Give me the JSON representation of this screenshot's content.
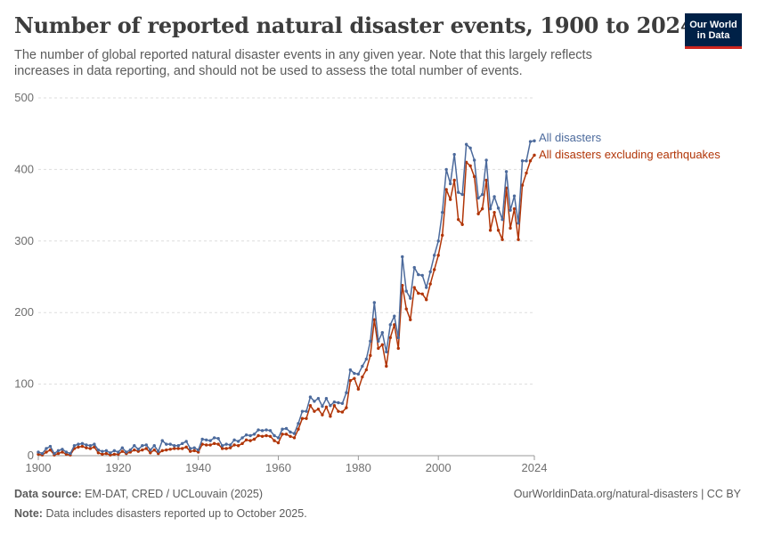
{
  "header": {
    "title": "Number of reported natural disaster events, 1900 to 2024",
    "subtitle": "The number of global reported natural disaster events in any given year. Note that this largely reflects increases in data reporting, and should not be used to assess the total number of events."
  },
  "logo": {
    "line1": "Our World",
    "line2": "in Data"
  },
  "footer": {
    "source_label": "Data source:",
    "source_text": "EM-DAT, CRED / UCLouvain (2025)",
    "url_text": "OurWorldinData.org/natural-disasters | CC BY",
    "note_label": "Note:",
    "note_text": "Data includes disasters reported up to October 2025."
  },
  "colors": {
    "all": "#4c6a9c",
    "excl": "#b13507",
    "grid": "#dddddd",
    "axis": "#999999"
  },
  "chart_data": {
    "type": "line",
    "title": "Number of reported natural disaster events, 1900 to 2024",
    "xlabel": "",
    "ylabel": "",
    "xlim": [
      1900,
      2024
    ],
    "ylim": [
      0,
      500
    ],
    "x_ticks": [
      1900,
      1920,
      1940,
      1960,
      1980,
      2000,
      2024
    ],
    "y_ticks": [
      0,
      100,
      200,
      300,
      400,
      500
    ],
    "grid": true,
    "series": [
      {
        "name": "All disasters",
        "color": "#4c6a9c",
        "x": [
          1900,
          1901,
          1902,
          1903,
          1904,
          1905,
          1906,
          1907,
          1908,
          1909,
          1910,
          1911,
          1912,
          1913,
          1914,
          1915,
          1916,
          1917,
          1918,
          1919,
          1920,
          1921,
          1922,
          1923,
          1924,
          1925,
          1926,
          1927,
          1928,
          1929,
          1930,
          1931,
          1932,
          1933,
          1934,
          1935,
          1936,
          1937,
          1938,
          1939,
          1940,
          1941,
          1942,
          1943,
          1944,
          1945,
          1946,
          1947,
          1948,
          1949,
          1950,
          1951,
          1952,
          1953,
          1954,
          1955,
          1956,
          1957,
          1958,
          1959,
          1960,
          1961,
          1962,
          1963,
          1964,
          1965,
          1966,
          1967,
          1968,
          1969,
          1970,
          1971,
          1972,
          1973,
          1974,
          1975,
          1976,
          1977,
          1978,
          1979,
          1980,
          1981,
          1982,
          1983,
          1984,
          1985,
          1986,
          1987,
          1988,
          1989,
          1990,
          1991,
          1992,
          1993,
          1994,
          1995,
          1996,
          1997,
          1998,
          1999,
          2000,
          2001,
          2002,
          2003,
          2004,
          2005,
          2006,
          2007,
          2008,
          2009,
          2010,
          2011,
          2012,
          2013,
          2014,
          2015,
          2016,
          2017,
          2018,
          2019,
          2020,
          2021,
          2022,
          2023,
          2024
        ],
        "values": [
          5,
          3,
          10,
          13,
          3,
          7,
          9,
          5,
          3,
          14,
          16,
          17,
          15,
          14,
          16,
          8,
          6,
          7,
          4,
          7,
          5,
          11,
          5,
          8,
          14,
          9,
          14,
          15,
          8,
          14,
          6,
          21,
          16,
          16,
          14,
          14,
          17,
          20,
          10,
          11,
          8,
          23,
          22,
          21,
          25,
          24,
          14,
          16,
          15,
          22,
          20,
          25,
          29,
          28,
          30,
          36,
          35,
          36,
          35,
          28,
          25,
          37,
          38,
          33,
          31,
          45,
          62,
          62,
          82,
          76,
          80,
          69,
          80,
          70,
          75,
          74,
          73,
          88,
          120,
          115,
          114,
          125,
          135,
          160,
          214,
          160,
          172,
          145,
          183,
          195,
          165,
          278,
          230,
          220,
          263,
          253,
          252,
          235,
          257,
          280,
          300,
          340,
          400,
          380,
          421,
          368,
          365,
          435,
          430,
          413,
          360,
          365,
          413,
          345,
          362,
          346,
          330,
          397,
          343,
          363,
          325,
          412,
          412,
          439,
          440
        ]
      },
      {
        "name": "All disasters excluding earthquakes",
        "color": "#b13507",
        "x": [
          1900,
          1901,
          1902,
          1903,
          1904,
          1905,
          1906,
          1907,
          1908,
          1909,
          1910,
          1911,
          1912,
          1913,
          1914,
          1915,
          1916,
          1917,
          1918,
          1919,
          1920,
          1921,
          1922,
          1923,
          1924,
          1925,
          1926,
          1927,
          1928,
          1929,
          1930,
          1931,
          1932,
          1933,
          1934,
          1935,
          1936,
          1937,
          1938,
          1939,
          1940,
          1941,
          1942,
          1943,
          1944,
          1945,
          1946,
          1947,
          1948,
          1949,
          1950,
          1951,
          1952,
          1953,
          1954,
          1955,
          1956,
          1957,
          1958,
          1959,
          1960,
          1961,
          1962,
          1963,
          1964,
          1965,
          1966,
          1967,
          1968,
          1969,
          1970,
          1971,
          1972,
          1973,
          1974,
          1975,
          1976,
          1977,
          1978,
          1979,
          1980,
          1981,
          1982,
          1983,
          1984,
          1985,
          1986,
          1987,
          1988,
          1989,
          1990,
          1991,
          1992,
          1993,
          1994,
          1995,
          1996,
          1997,
          1998,
          1999,
          2000,
          2001,
          2002,
          2003,
          2004,
          2005,
          2006,
          2007,
          2008,
          2009,
          2010,
          2011,
          2012,
          2013,
          2014,
          2015,
          2016,
          2017,
          2018,
          2019,
          2020,
          2021,
          2022,
          2023,
          2024
        ],
        "values": [
          2,
          1,
          5,
          8,
          1,
          3,
          5,
          2,
          1,
          10,
          12,
          13,
          11,
          10,
          12,
          4,
          2,
          3,
          1,
          2,
          2,
          6,
          3,
          5,
          8,
          6,
          8,
          10,
          4,
          8,
          3,
          7,
          8,
          9,
          10,
          10,
          10,
          12,
          6,
          7,
          5,
          16,
          15,
          15,
          17,
          16,
          10,
          10,
          11,
          15,
          14,
          17,
          22,
          21,
          23,
          28,
          27,
          28,
          27,
          21,
          18,
          30,
          30,
          27,
          25,
          37,
          52,
          52,
          70,
          62,
          65,
          57,
          68,
          55,
          70,
          62,
          61,
          67,
          105,
          108,
          93,
          110,
          120,
          140,
          190,
          150,
          155,
          125,
          165,
          183,
          150,
          238,
          205,
          190,
          235,
          227,
          226,
          218,
          240,
          260,
          280,
          308,
          372,
          358,
          385,
          330,
          323,
          410,
          405,
          390,
          338,
          345,
          385,
          315,
          340,
          315,
          302,
          374,
          318,
          345,
          302,
          378,
          395,
          412,
          420
        ]
      }
    ]
  }
}
